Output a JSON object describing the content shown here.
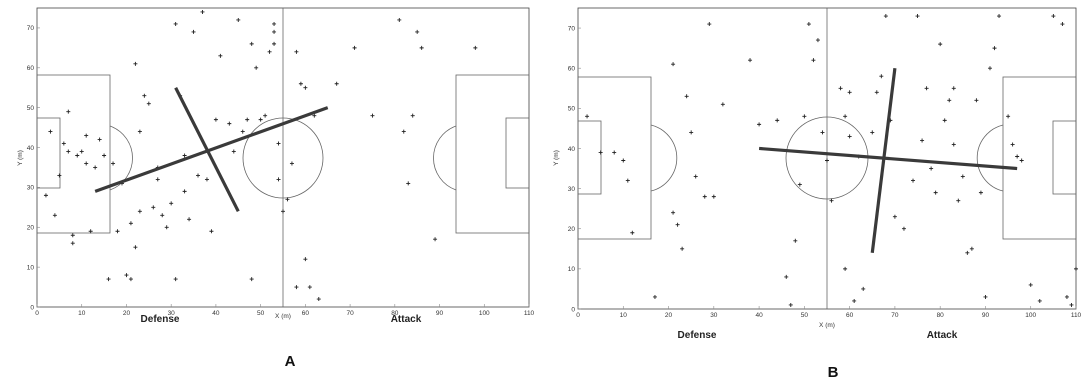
{
  "chart_data": [
    {
      "type": "scatter",
      "panel_label": "A",
      "xlabel": "X (m)",
      "ylabel": "Y (m)",
      "xlim": [
        0,
        110
      ],
      "ylim": [
        0,
        75
      ],
      "xticks": [
        "0",
        "10",
        "20",
        "30",
        "40",
        "50",
        "60",
        "70",
        "80",
        "90",
        "100",
        "110"
      ],
      "yticks": [
        "0",
        "10",
        "20",
        "30",
        "40",
        "50",
        "60",
        "70"
      ],
      "zone_labels": {
        "left": "Defense",
        "right": "Attack"
      },
      "points": [
        [
          2,
          28
        ],
        [
          3,
          44
        ],
        [
          4,
          23
        ],
        [
          5,
          33
        ],
        [
          6,
          41
        ],
        [
          7,
          49
        ],
        [
          7,
          39
        ],
        [
          8,
          16
        ],
        [
          8,
          18
        ],
        [
          9,
          38
        ],
        [
          10,
          39
        ],
        [
          11,
          36
        ],
        [
          11,
          43
        ],
        [
          12,
          19
        ],
        [
          13,
          35
        ],
        [
          14,
          42
        ],
        [
          15,
          38
        ],
        [
          16,
          7
        ],
        [
          17,
          36
        ],
        [
          18,
          19
        ],
        [
          19,
          31
        ],
        [
          20,
          8
        ],
        [
          21,
          7
        ],
        [
          21,
          21
        ],
        [
          22,
          15
        ],
        [
          22,
          61
        ],
        [
          23,
          24
        ],
        [
          23,
          44
        ],
        [
          24,
          53
        ],
        [
          25,
          51
        ],
        [
          26,
          25
        ],
        [
          27,
          32
        ],
        [
          27,
          35
        ],
        [
          28,
          23
        ],
        [
          29,
          20
        ],
        [
          30,
          26
        ],
        [
          31,
          71
        ],
        [
          31,
          7
        ],
        [
          32,
          53
        ],
        [
          33,
          29
        ],
        [
          33,
          38
        ],
        [
          34,
          22
        ],
        [
          35,
          69
        ],
        [
          36,
          33
        ],
        [
          37,
          74
        ],
        [
          38,
          32
        ],
        [
          39,
          19
        ],
        [
          40,
          47
        ],
        [
          41,
          63
        ],
        [
          43,
          46
        ],
        [
          44,
          39
        ],
        [
          45,
          72
        ],
        [
          46,
          44
        ],
        [
          47,
          47
        ],
        [
          48,
          66
        ],
        [
          48,
          7
        ],
        [
          49,
          60
        ],
        [
          50,
          47
        ],
        [
          51,
          48
        ],
        [
          52,
          64
        ],
        [
          53,
          69
        ],
        [
          53,
          71
        ],
        [
          53,
          66
        ],
        [
          54,
          41
        ],
        [
          54,
          32
        ],
        [
          55,
          24
        ],
        [
          56,
          27
        ],
        [
          57,
          36
        ],
        [
          58,
          64
        ],
        [
          58,
          5
        ],
        [
          59,
          56
        ],
        [
          60,
          55
        ],
        [
          60,
          12
        ],
        [
          61,
          5
        ],
        [
          62,
          48
        ],
        [
          63,
          2
        ],
        [
          67,
          56
        ],
        [
          71,
          65
        ],
        [
          75,
          48
        ],
        [
          81,
          72
        ],
        [
          82,
          44
        ],
        [
          83,
          31
        ],
        [
          84,
          48
        ],
        [
          85,
          69
        ],
        [
          86,
          65
        ],
        [
          89,
          17
        ],
        [
          98,
          65
        ]
      ],
      "axis_lines": [
        {
          "from": [
            13,
            29
          ],
          "to": [
            65,
            50
          ]
        },
        {
          "from": [
            31,
            55
          ],
          "to": [
            45,
            24
          ]
        }
      ]
    },
    {
      "type": "scatter",
      "panel_label": "B",
      "xlabel": "X (m)",
      "ylabel": "Y (m)",
      "xlim": [
        0,
        110
      ],
      "ylim": [
        0,
        75
      ],
      "xticks": [
        "0",
        "10",
        "20",
        "30",
        "40",
        "50",
        "60",
        "70",
        "80",
        "90",
        "100",
        "110"
      ],
      "yticks": [
        "0",
        "10",
        "20",
        "30",
        "40",
        "50",
        "60",
        "70"
      ],
      "zone_labels": {
        "left": "Defense",
        "right": "Attack"
      },
      "points": [
        [
          2,
          48
        ],
        [
          5,
          39
        ],
        [
          8,
          39
        ],
        [
          10,
          37
        ],
        [
          11,
          32
        ],
        [
          12,
          19
        ],
        [
          17,
          3
        ],
        [
          21,
          61
        ],
        [
          21,
          24
        ],
        [
          22,
          21
        ],
        [
          23,
          15
        ],
        [
          24,
          53
        ],
        [
          25,
          44
        ],
        [
          26,
          33
        ],
        [
          28,
          28
        ],
        [
          29,
          71
        ],
        [
          30,
          28
        ],
        [
          32,
          51
        ],
        [
          38,
          62
        ],
        [
          40,
          46
        ],
        [
          44,
          47
        ],
        [
          46,
          8
        ],
        [
          47,
          1
        ],
        [
          48,
          17
        ],
        [
          49,
          31
        ],
        [
          50,
          48
        ],
        [
          51,
          71
        ],
        [
          52,
          62
        ],
        [
          53,
          67
        ],
        [
          54,
          44
        ],
        [
          55,
          37
        ],
        [
          56,
          27
        ],
        [
          58,
          55
        ],
        [
          59,
          48
        ],
        [
          59,
          10
        ],
        [
          60,
          54
        ],
        [
          60,
          43
        ],
        [
          61,
          2
        ],
        [
          62,
          38
        ],
        [
          63,
          5
        ],
        [
          65,
          44
        ],
        [
          66,
          54
        ],
        [
          67,
          58
        ],
        [
          68,
          73
        ],
        [
          69,
          47
        ],
        [
          70,
          23
        ],
        [
          72,
          20
        ],
        [
          74,
          32
        ],
        [
          75,
          73
        ],
        [
          76,
          42
        ],
        [
          77,
          55
        ],
        [
          78,
          35
        ],
        [
          79,
          29
        ],
        [
          80,
          66
        ],
        [
          81,
          47
        ],
        [
          82,
          52
        ],
        [
          83,
          55
        ],
        [
          83,
          41
        ],
        [
          84,
          27
        ],
        [
          85,
          33
        ],
        [
          86,
          14
        ],
        [
          87,
          15
        ],
        [
          88,
          52
        ],
        [
          89,
          29
        ],
        [
          90,
          3
        ],
        [
          91,
          60
        ],
        [
          92,
          65
        ],
        [
          93,
          73
        ],
        [
          95,
          48
        ],
        [
          96,
          41
        ],
        [
          97,
          38
        ],
        [
          98,
          37
        ],
        [
          100,
          6
        ],
        [
          102,
          2
        ],
        [
          105,
          73
        ],
        [
          107,
          71
        ],
        [
          108,
          3
        ],
        [
          109,
          1
        ],
        [
          110,
          10
        ]
      ],
      "axis_lines": [
        {
          "from": [
            40,
            40
          ],
          "to": [
            97,
            35
          ]
        },
        {
          "from": [
            65,
            14
          ],
          "to": [
            70,
            60
          ]
        }
      ]
    }
  ]
}
